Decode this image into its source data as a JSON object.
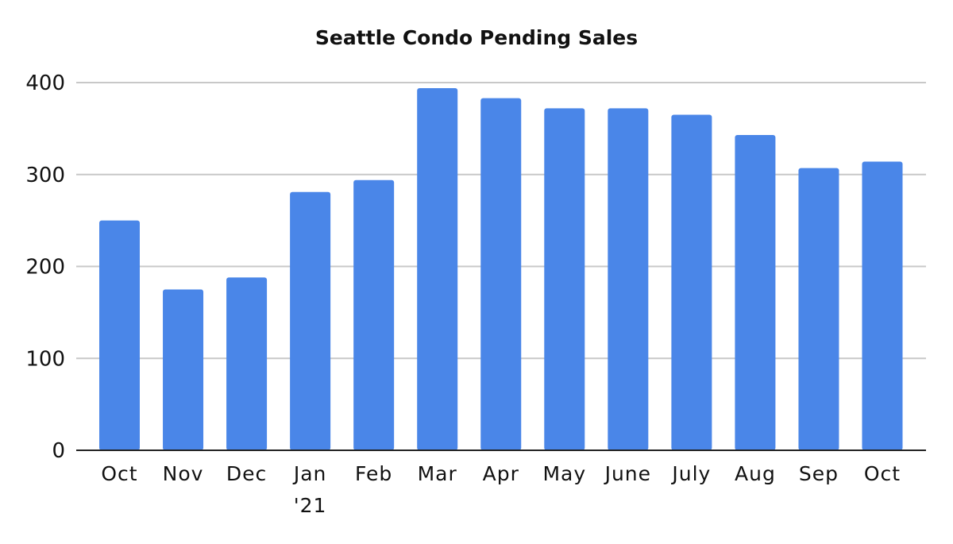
{
  "chart_data": {
    "type": "bar",
    "title": "Seattle Condo Pending Sales",
    "xlabel": "",
    "ylabel": "",
    "categories": [
      [
        "Oct"
      ],
      [
        "Nov"
      ],
      [
        "Dec"
      ],
      [
        "Jan",
        "'21"
      ],
      [
        "Feb"
      ],
      [
        "Mar"
      ],
      [
        "Apr"
      ],
      [
        "May"
      ],
      [
        "June"
      ],
      [
        "July"
      ],
      [
        "Aug"
      ],
      [
        "Sep"
      ],
      [
        "Oct"
      ]
    ],
    "values": [
      250,
      175,
      188,
      281,
      294,
      394,
      383,
      372,
      372,
      365,
      343,
      307,
      314
    ],
    "ylim": [
      0,
      400
    ],
    "yticks": [
      0,
      100,
      200,
      300,
      400
    ],
    "grid": true,
    "legend": "none",
    "bar_color": "#4A86E8",
    "grid_color": "#C8C8C8",
    "axis_color": "#222222"
  }
}
